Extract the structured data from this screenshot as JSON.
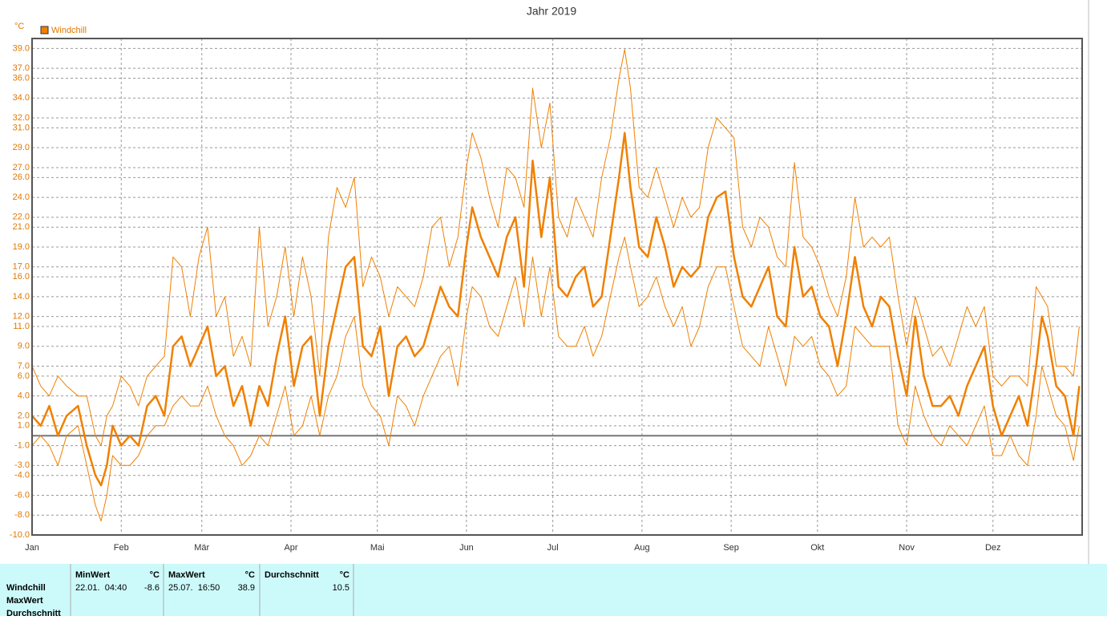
{
  "chart_data": {
    "type": "line",
    "title": "Jahr 2019",
    "y_unit": "°C",
    "legend": "Windchill",
    "legend_color": "#f08000",
    "xlim": [
      0,
      365
    ],
    "ylim": [
      -10,
      40
    ],
    "xticks": [
      {
        "value": 0,
        "label": "Jan"
      },
      {
        "value": 31,
        "label": "Feb"
      },
      {
        "value": 59,
        "label": "Mär"
      },
      {
        "value": 90,
        "label": "Apr"
      },
      {
        "value": 120,
        "label": "Mai"
      },
      {
        "value": 151,
        "label": "Jun"
      },
      {
        "value": 181,
        "label": "Jul"
      },
      {
        "value": 212,
        "label": "Aug"
      },
      {
        "value": 243,
        "label": "Sep"
      },
      {
        "value": 273,
        "label": "Okt"
      },
      {
        "value": 304,
        "label": "Nov"
      },
      {
        "value": 334,
        "label": "Dez"
      }
    ],
    "yticks": [
      {
        "value": 39,
        "label": "39.0"
      },
      {
        "value": 37,
        "label": "37.0"
      },
      {
        "value": 36,
        "label": "36.0"
      },
      {
        "value": 34,
        "label": "34.0"
      },
      {
        "value": 32,
        "label": "32.0"
      },
      {
        "value": 31,
        "label": "31.0"
      },
      {
        "value": 29,
        "label": "29.0"
      },
      {
        "value": 27,
        "label": "27.0"
      },
      {
        "value": 26,
        "label": "26.0"
      },
      {
        "value": 24,
        "label": "24.0"
      },
      {
        "value": 22,
        "label": "22.0"
      },
      {
        "value": 21,
        "label": "21.0"
      },
      {
        "value": 19,
        "label": "19.0"
      },
      {
        "value": 17,
        "label": "17.0"
      },
      {
        "value": 16,
        "label": "16.0"
      },
      {
        "value": 14,
        "label": "14.0"
      },
      {
        "value": 12,
        "label": "12.0"
      },
      {
        "value": 11,
        "label": "11.0"
      },
      {
        "value": 9,
        "label": "9.0"
      },
      {
        "value": 7,
        "label": "7.0"
      },
      {
        "value": 6,
        "label": "6.0"
      },
      {
        "value": 4,
        "label": "4.0"
      },
      {
        "value": 2,
        "label": "2.0"
      },
      {
        "value": 1,
        "label": "1.0"
      },
      {
        "value": -1,
        "label": "-1.0"
      },
      {
        "value": -3,
        "label": "-3.0"
      },
      {
        "value": -4,
        "label": "-4.0"
      },
      {
        "value": -6,
        "label": "-6.0"
      },
      {
        "value": -8,
        "label": "-8.0"
      },
      {
        "value": -10,
        "label": "-10.0"
      }
    ],
    "grid": true,
    "x": [
      0,
      3,
      6,
      9,
      12,
      16,
      19,
      22,
      24,
      26,
      28,
      31,
      34,
      37,
      40,
      43,
      46,
      49,
      52,
      55,
      58,
      61,
      64,
      67,
      70,
      73,
      76,
      79,
      82,
      85,
      88,
      91,
      94,
      97,
      100,
      103,
      106,
      109,
      112,
      115,
      118,
      121,
      124,
      127,
      130,
      133,
      136,
      139,
      142,
      145,
      148,
      151,
      153,
      156,
      159,
      162,
      165,
      168,
      171,
      174,
      177,
      180,
      183,
      186,
      189,
      192,
      195,
      198,
      201,
      204,
      206,
      208,
      211,
      214,
      217,
      220,
      223,
      226,
      229,
      232,
      235,
      238,
      241,
      244,
      247,
      250,
      253,
      256,
      259,
      262,
      265,
      268,
      271,
      274,
      277,
      280,
      283,
      286,
      289,
      292,
      295,
      298,
      301,
      304,
      307,
      310,
      313,
      316,
      319,
      322,
      325,
      328,
      331,
      334,
      337,
      340,
      343,
      346,
      349,
      351,
      353,
      356,
      359,
      362,
      364
    ],
    "series": [
      {
        "color": "#f08000",
        "width": 2.5,
        "values": [
          2,
          1,
          3,
          0,
          2,
          3,
          -1,
          -4,
          -5,
          -3,
          1,
          -1,
          0,
          -1,
          3,
          4,
          2,
          9,
          10,
          7,
          9,
          11,
          6,
          7,
          3,
          5,
          1,
          5,
          3,
          8,
          12,
          5,
          9,
          10,
          2,
          9,
          13,
          17,
          18,
          9,
          8,
          11,
          4,
          9,
          10,
          8,
          9,
          12,
          15,
          13,
          12,
          19,
          23,
          20,
          18,
          16,
          20,
          22,
          15,
          27.7,
          20,
          26,
          15,
          14,
          16,
          17,
          13,
          14,
          20,
          26,
          30.5,
          25,
          19,
          18,
          22,
          19,
          15,
          17,
          16,
          17,
          22,
          24,
          24.6,
          18,
          14,
          13,
          15,
          17,
          12,
          11,
          19,
          14,
          15,
          12,
          11,
          7,
          12,
          18,
          13,
          11,
          14,
          13,
          8,
          4,
          12,
          6,
          3,
          3,
          4,
          2,
          5,
          7,
          9,
          3,
          0,
          2,
          4,
          1,
          7,
          12,
          10,
          5,
          4,
          0,
          5
        ]
      },
      {
        "color": "#f08000",
        "width": 1,
        "values": [
          7,
          5,
          4,
          6,
          5,
          4,
          4,
          0,
          -1,
          2,
          3,
          6,
          5,
          3,
          6,
          7,
          8,
          18,
          17,
          12,
          18,
          21,
          12,
          14,
          8,
          10,
          7,
          21,
          11,
          14,
          19,
          12,
          18,
          14,
          6,
          20,
          25,
          23,
          26,
          15,
          18,
          16,
          12,
          15,
          14,
          13,
          16,
          21,
          22,
          17,
          20,
          27,
          30.5,
          28,
          24,
          21,
          27,
          26,
          23,
          35,
          29,
          33.5,
          22,
          20,
          24,
          22,
          20,
          26,
          30,
          36,
          38.9,
          35,
          25,
          24,
          27,
          24,
          21,
          24,
          22,
          23,
          29,
          32,
          31,
          30,
          21,
          19,
          22,
          21,
          18,
          17,
          27.5,
          20,
          19,
          17,
          14,
          12,
          16,
          24,
          19,
          20,
          19,
          20,
          14,
          9,
          14,
          11,
          8,
          9,
          7,
          10,
          13,
          11,
          13,
          6,
          5,
          6,
          6,
          5,
          15,
          14,
          13,
          7,
          7,
          6,
          11
        ]
      },
      {
        "color": "#f08000",
        "width": 1,
        "values": [
          -1,
          0,
          -1,
          -3,
          0,
          1,
          -3,
          -7,
          -8.6,
          -6,
          -2,
          -3,
          -3,
          -2,
          0,
          1,
          1,
          3,
          4,
          3,
          3,
          5,
          2,
          0,
          -1,
          -3,
          -2,
          0,
          -1,
          2,
          5,
          0,
          1,
          4,
          0,
          4,
          6,
          10,
          12,
          5,
          3,
          2,
          -1,
          4,
          3,
          1,
          4,
          6,
          8,
          9,
          5,
          12,
          15,
          14,
          11,
          10,
          13,
          16,
          11,
          18,
          12,
          17,
          10,
          9,
          9,
          11,
          8,
          10,
          14,
          18,
          20,
          17,
          13,
          14,
          16,
          13,
          11,
          13,
          9,
          11,
          15,
          17,
          17,
          13,
          9,
          8,
          7,
          11,
          8,
          5,
          10,
          9,
          10,
          7,
          6,
          4,
          5,
          11,
          10,
          9,
          9,
          9,
          1,
          -1,
          5,
          2,
          0,
          -1,
          1,
          0,
          -1,
          1,
          3,
          -2,
          -2,
          0,
          -2,
          -3,
          2,
          7,
          5,
          2,
          1,
          -2.5,
          1
        ]
      }
    ]
  },
  "table": {
    "row_labels": [
      "Windchill",
      "MaxWert",
      "Durchschnitt"
    ],
    "columns": [
      {
        "header": "MinWert",
        "unit": "°C",
        "when": "22.01.  04:40",
        "value": "-8.6"
      },
      {
        "header": "MaxWert",
        "unit": "°C",
        "when": "25.07.  16:50",
        "value": "38.9"
      },
      {
        "header": "Durchschnitt",
        "unit": "°C",
        "value": "10.5"
      }
    ]
  }
}
